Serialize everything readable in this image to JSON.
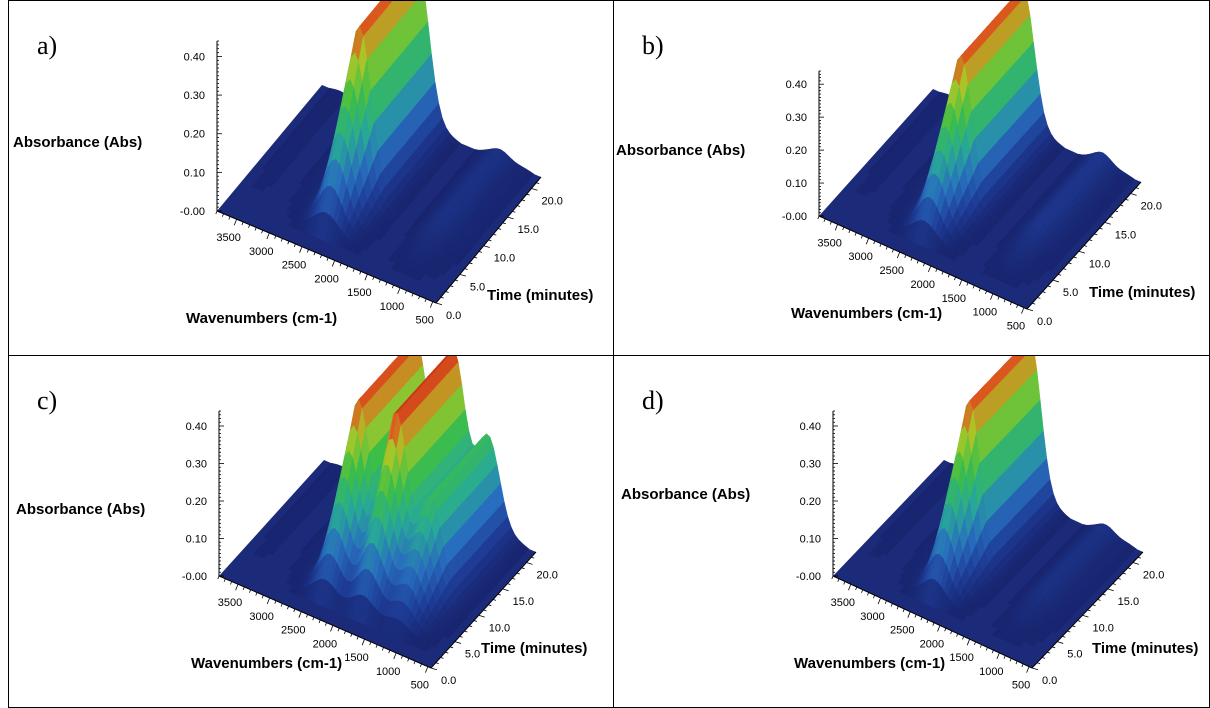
{
  "chart_data": [
    {
      "type": "surface3d",
      "panel": "a)",
      "ylabel": "Absorbance (Abs)",
      "xlabel": "Wavenumbers (cm-1)",
      "zlabel": "Time (minutes)",
      "y_ticks": [
        "0.40",
        "0.30",
        "0.20",
        "0.10",
        "-0.00"
      ],
      "x_ticks": [
        "3500",
        "3000",
        "2500",
        "2000",
        "1500",
        "1000",
        "500"
      ],
      "z_ticks": [
        "0.0",
        "5.0",
        "10.0",
        "15.0",
        "20.0"
      ],
      "ylim": [
        0,
        0.44
      ],
      "peaks": [
        {
          "wavenumber": 2350,
          "time": 20,
          "absorbance": 0.43
        },
        {
          "wavenumber": 1050,
          "time": 20,
          "absorbance": 0.03
        }
      ]
    },
    {
      "type": "surface3d",
      "panel": "b)",
      "ylabel": "Absorbance (Abs)",
      "xlabel": "Wavenumbers (cm-1)",
      "zlabel": "Time (minutes)",
      "y_ticks": [
        "0.40",
        "0.30",
        "0.20",
        "0.10",
        "-0.00"
      ],
      "x_ticks": [
        "3500",
        "3000",
        "2500",
        "2000",
        "1500",
        "1000",
        "500"
      ],
      "z_ticks": [
        "0.0",
        "5.0",
        "10.0",
        "15.0",
        "20.0"
      ],
      "ylim": [
        0,
        0.44
      ],
      "peaks": [
        {
          "wavenumber": 2350,
          "time": 20,
          "absorbance": 0.43
        },
        {
          "wavenumber": 1050,
          "time": 20,
          "absorbance": 0.04
        }
      ]
    },
    {
      "type": "surface3d",
      "panel": "c)",
      "ylabel": "Absorbance (Abs)",
      "xlabel": "Wavenumbers (cm-1)",
      "zlabel": "Time (minutes)",
      "y_ticks": [
        "0.40",
        "0.30",
        "0.20",
        "0.10",
        "-0.00"
      ],
      "x_ticks": [
        "3500",
        "3000",
        "2500",
        "2000",
        "1500",
        "1000",
        "500"
      ],
      "z_ticks": [
        "0.0",
        "5.0",
        "10.0",
        "15.0",
        "20.0"
      ],
      "ylim": [
        0,
        0.44
      ],
      "peaks": [
        {
          "wavenumber": 2350,
          "time": 20,
          "absorbance": 0.43
        },
        {
          "wavenumber": 1750,
          "time": 20,
          "absorbance": 0.44
        },
        {
          "wavenumber": 1200,
          "time": 20,
          "absorbance": 0.25
        }
      ]
    },
    {
      "type": "surface3d",
      "panel": "d)",
      "ylabel": "Absorbance (Abs)",
      "xlabel": "Wavenumbers (cm-1)",
      "zlabel": "Time (minutes)",
      "y_ticks": [
        "0.40",
        "0.30",
        "0.20",
        "0.10",
        "-0.00"
      ],
      "x_ticks": [
        "3500",
        "3000",
        "2500",
        "2000",
        "1500",
        "1000",
        "500"
      ],
      "z_ticks": [
        "0.0",
        "5.0",
        "10.0",
        "15.0",
        "20.0"
      ],
      "ylim": [
        0,
        0.44
      ],
      "peaks": [
        {
          "wavenumber": 2350,
          "time": 20,
          "absorbance": 0.43
        },
        {
          "wavenumber": 1050,
          "time": 20,
          "absorbance": 0.03
        }
      ]
    }
  ]
}
